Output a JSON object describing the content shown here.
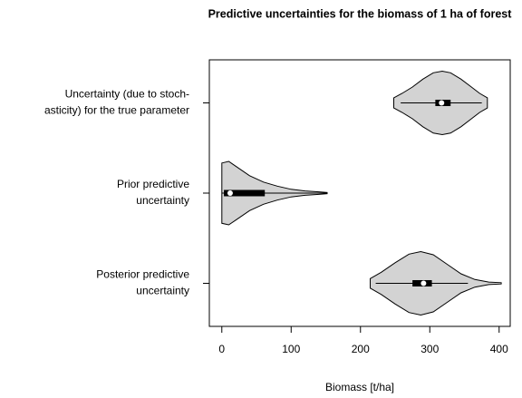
{
  "chart_data": {
    "type": "violin",
    "title": "Predictive uncertainties for the biomass of 1 ha of forest",
    "x_label": "Biomass [t/ha]",
    "xlim": [
      -18,
      416
    ],
    "xticks": [
      0,
      100,
      200,
      300,
      400
    ],
    "fill_color": "#d3d3d3",
    "line_color": "#000000",
    "categories": [
      "Uncertainty (due to stoch-\nasticity) for the true parameter",
      "Prior predictive\nuncertainty",
      "Posterior predictive\nuncertainty"
    ],
    "violins": [
      {
        "grid": [
          248,
          260,
          275,
          290,
          305,
          318,
          330,
          345,
          360,
          372,
          383
        ],
        "density": [
          0.16,
          0.3,
          0.5,
          0.75,
          0.95,
          1.0,
          0.95,
          0.75,
          0.5,
          0.3,
          0.16
        ],
        "whisker_lo": 258,
        "q1": 308,
        "median": 317,
        "q3": 330,
        "whisker_hi": 375
      },
      {
        "grid": [
          0,
          10,
          20,
          40,
          60,
          80,
          100,
          120,
          140,
          152
        ],
        "density": [
          0.95,
          1.0,
          0.85,
          0.55,
          0.35,
          0.22,
          0.12,
          0.07,
          0.04,
          0.02
        ],
        "whisker_lo": 0,
        "q1": 3,
        "median": 12,
        "q3": 62,
        "whisker_hi": 152
      },
      {
        "grid": [
          214,
          230,
          250,
          270,
          287,
          305,
          325,
          345,
          365,
          385,
          403
        ],
        "density": [
          0.15,
          0.35,
          0.65,
          0.92,
          1.0,
          0.9,
          0.6,
          0.3,
          0.12,
          0.04,
          0.02
        ],
        "whisker_lo": 222,
        "q1": 275,
        "median": 291,
        "q3": 303,
        "whisker_hi": 355
      }
    ]
  }
}
